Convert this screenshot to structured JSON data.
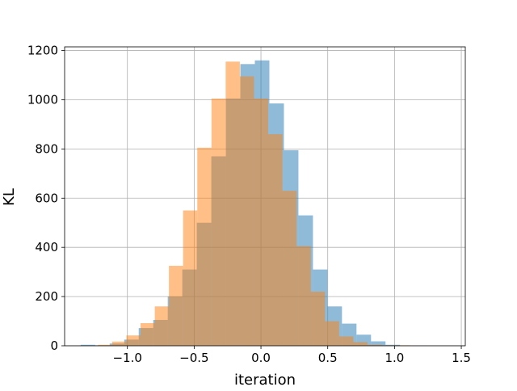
{
  "chart_data": {
    "type": "histogram",
    "title": "",
    "xlabel": "iteration",
    "ylabel": "KL",
    "xlim": [
      -1.47,
      1.53
    ],
    "ylim": [
      0,
      1215
    ],
    "grid": true,
    "xticks": [
      -1.0,
      -0.5,
      0.0,
      0.5,
      1.0,
      1.5
    ],
    "xtick_labels": [
      "−1.0",
      "−0.5",
      "0.0",
      "0.5",
      "1.0",
      "1.5"
    ],
    "yticks": [
      0,
      200,
      400,
      600,
      800,
      1000,
      1200
    ],
    "ytick_labels": [
      "0",
      "200",
      "400",
      "600",
      "800",
      "1000",
      "1200"
    ],
    "series": [
      {
        "color": "#1f77b4",
        "alpha": 0.5,
        "bin_width": 0.1087,
        "bin_start": -1.35,
        "counts": [
          4,
          2,
          9,
          25,
          72,
          105,
          200,
          310,
          500,
          770,
          1005,
          1145,
          1160,
          985,
          795,
          530,
          310,
          160,
          90,
          45,
          18,
          4
        ]
      },
      {
        "color": "#ff7f0e",
        "alpha": 0.5,
        "bin_width": 0.1062,
        "bin_start": -1.22,
        "counts": [
          4,
          17,
          42,
          92,
          160,
          325,
          550,
          805,
          1005,
          1155,
          1095,
          1005,
          860,
          630,
          405,
          220,
          100,
          38,
          15,
          4,
          2,
          2,
          1
        ]
      }
    ]
  }
}
